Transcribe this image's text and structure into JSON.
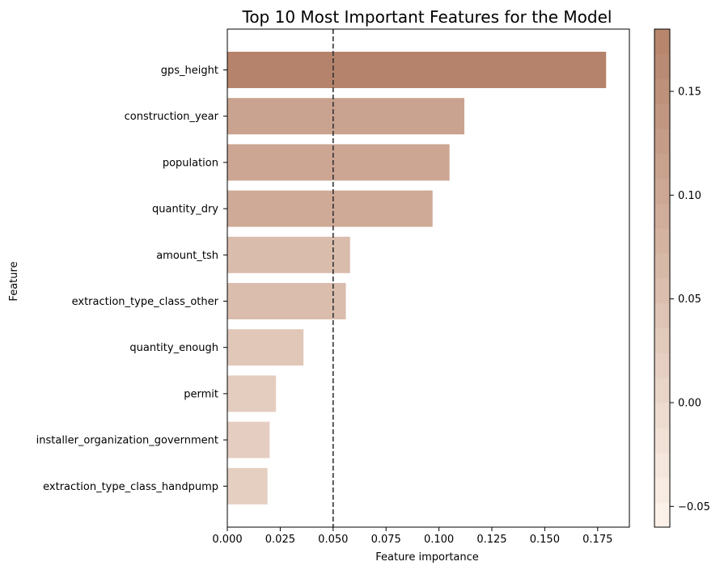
{
  "chart_data": {
    "type": "bar",
    "orientation": "horizontal",
    "title": "Top 10 Most Important Features for the Model",
    "xlabel": "Feature importance",
    "ylabel": "Feature",
    "categories": [
      "gps_height",
      "construction_year",
      "population",
      "quantity_dry",
      "amount_tsh",
      "extraction_type_class_other",
      "quantity_enough",
      "permit",
      "installer_organization_government",
      "extraction_type_class_handpump"
    ],
    "values": [
      0.179,
      0.112,
      0.105,
      0.097,
      0.058,
      0.056,
      0.036,
      0.023,
      0.02,
      0.019
    ],
    "xlim": [
      0.0,
      0.19
    ],
    "xticks": [
      "0.000",
      "0.025",
      "0.050",
      "0.075",
      "0.100",
      "0.125",
      "0.150",
      "0.175"
    ],
    "reference_line": {
      "x": 0.05,
      "style": "dashed"
    },
    "grid": false,
    "legend": "none",
    "colorbar": {
      "range": [
        -0.06,
        0.18
      ],
      "ticks": [
        "0.15",
        "0.10",
        "0.05",
        "0.00",
        "−0.05"
      ],
      "color_low": "#fdf4ec",
      "color_high": "#b5836a"
    }
  }
}
